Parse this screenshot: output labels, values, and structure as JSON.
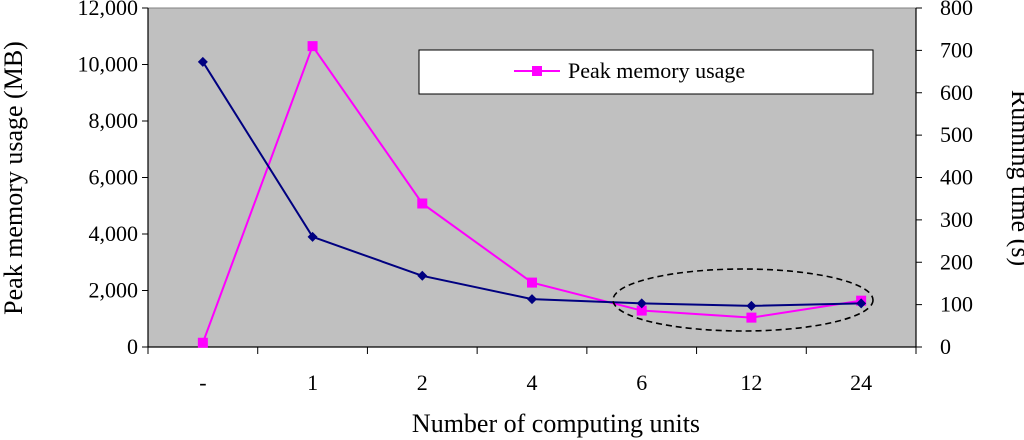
{
  "chart_data": {
    "type": "line",
    "title": "",
    "xlabel": "Number of computing units",
    "ylabel_left": "Peak memory usage (MB)",
    "ylabel_right": "Running time (s)",
    "categories": [
      "-",
      "1",
      "2",
      "4",
      "6",
      "12",
      "24"
    ],
    "y_left": {
      "min": 0,
      "max": 12000,
      "step": 2000,
      "ticks": [
        "0",
        "2,000",
        "4,000",
        "6,000",
        "8,000",
        "10,000",
        "12,000"
      ]
    },
    "y_right": {
      "min": 0,
      "max": 800,
      "step": 100,
      "ticks": [
        "0",
        "100",
        "200",
        "300",
        "400",
        "500",
        "600",
        "700",
        "800"
      ]
    },
    "series": [
      {
        "name": "Peak memory usage",
        "axis": "left",
        "color": "#FF00FF",
        "marker": "square",
        "values": [
          150,
          10650,
          5080,
          2280,
          1290,
          1040,
          1640
        ]
      },
      {
        "axis": "right",
        "color": "#000080",
        "marker": "diamond",
        "values": [
          673,
          260,
          168,
          113,
          103,
          97,
          103
        ]
      }
    ],
    "grid": false,
    "legend": "top-right",
    "plot_background": "#C0C0C0",
    "annotation": "dashed ellipse around categories 6-24"
  }
}
